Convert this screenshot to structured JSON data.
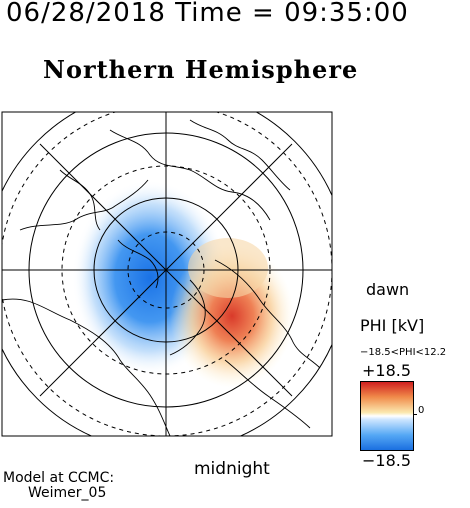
{
  "header": {
    "timestamp": "06/28/2018 Time = 09:35:00"
  },
  "title": "Northern Hemisphere",
  "map": {
    "projection": "polar-stereographic",
    "pole": "north",
    "orientation_labels": {
      "right": "dawn",
      "bottom": "midnight"
    },
    "field": {
      "name": "PHI",
      "unit": "kV",
      "label": "PHI [kV]",
      "range_text": "−18.5<PHI<12.2",
      "cells": [
        {
          "polarity": "negative",
          "sector": "pre-midnight / dusk side"
        },
        {
          "polarity": "positive",
          "sector": "dawn side"
        }
      ]
    },
    "colors": {
      "positive": "#d02020",
      "neutral": "#ffffff",
      "negative": "#1a6fe0"
    }
  },
  "colorbar": {
    "max_label": "+18.5",
    "min_label": "−18.5",
    "zero_label": "0"
  },
  "credit": {
    "line1": "Model at CCMC:",
    "line2": "Weimer_05"
  }
}
